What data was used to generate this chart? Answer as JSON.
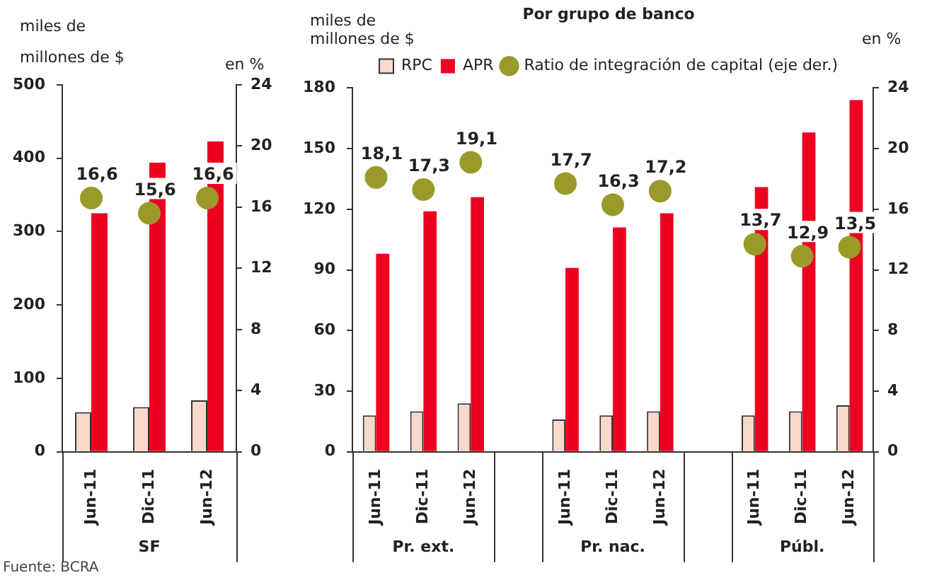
{
  "chart_data": [
    {
      "type": "bar",
      "categories": [
        "Jun-11",
        "Dic-11",
        "Jun-12"
      ],
      "xlabel": "SF",
      "ylabel": "miles de millones de $",
      "y2label": "en %",
      "ylim": [
        0,
        500
      ],
      "yticks": [
        0,
        100,
        200,
        300,
        400,
        500
      ],
      "y2lim": [
        0,
        24
      ],
      "y2ticks": [
        0,
        4,
        8,
        12,
        16,
        20,
        24
      ],
      "legend": false,
      "marker": "circle",
      "annotations": [
        "Fuente: BCRA"
      ],
      "series": [
        {
          "color": "#f9d9cc",
          "values": [
            54,
            61,
            70
          ]
        },
        {
          "color": "#ee0020",
          "values": [
            325,
            394,
            423
          ]
        },
        {
          "type": "scatter",
          "axis": "y2",
          "color": "#9a9a2a",
          "values": [
            16.6,
            15.6,
            16.6
          ],
          "value_labels": [
            "16,6",
            "15,6",
            "16,6"
          ]
        }
      ]
    },
    {
      "type": "bar",
      "title": "Por grupo de banco",
      "categories": [
        "Jun-11",
        "Dic-11",
        "Jun-12",
        null,
        "Jun-11",
        "Dic-11",
        "Jun-12",
        null,
        "Jun-11",
        "Dic-11",
        "Jun-12"
      ],
      "ylabel": "miles de millones de $",
      "y2label": "en %",
      "ylim": [
        0,
        180
      ],
      "yticks": [
        0,
        30,
        60,
        90,
        120,
        150,
        180
      ],
      "y2lim": [
        0,
        24
      ],
      "y2ticks": [
        0,
        4,
        8,
        12,
        16,
        20,
        24
      ],
      "legend": "top",
      "marker": "circle",
      "annotations": [
        "Pr. ext.",
        "Pr. nac.",
        "Públ."
      ],
      "series": [
        {
          "name": "RPC",
          "color": "#f9d9cc",
          "values": [
            18,
            20,
            24,
            null,
            16,
            18,
            20,
            null,
            18,
            20,
            23
          ]
        },
        {
          "name": "APR",
          "color": "#ee0020",
          "values": [
            98,
            119,
            126,
            null,
            91,
            111,
            118,
            null,
            131,
            158,
            174
          ]
        },
        {
          "name": "Ratio de integración de capital (eje der.)",
          "type": "scatter",
          "axis": "y2",
          "color": "#9a9a2a",
          "values": [
            18.1,
            17.3,
            19.1,
            null,
            17.7,
            16.3,
            17.2,
            null,
            13.7,
            12.9,
            13.5
          ],
          "value_labels": [
            "18,1",
            "17,3",
            "19,1",
            null,
            "17,7",
            "16,3",
            "17,2",
            null,
            "13,7",
            "12,9",
            "13,5"
          ]
        }
      ]
    }
  ]
}
